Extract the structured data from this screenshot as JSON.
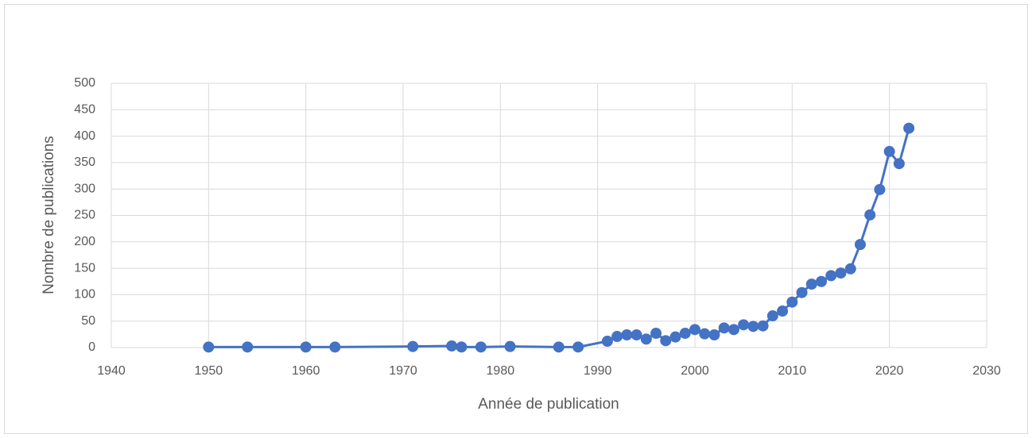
{
  "chart_data": {
    "type": "line",
    "x_label": "Année de publication",
    "y_label": "Nombre de publications",
    "x": [
      1950,
      1954,
      1960,
      1963,
      1971,
      1975,
      1976,
      1978,
      1981,
      1986,
      1988,
      1991,
      1992,
      1993,
      1994,
      1995,
      1996,
      1997,
      1998,
      1999,
      2000,
      2001,
      2002,
      2003,
      2004,
      2005,
      2006,
      2007,
      2008,
      2009,
      2010,
      2011,
      2012,
      2013,
      2014,
      2015,
      2016,
      2017,
      2018,
      2019,
      2020,
      2021,
      2022
    ],
    "series": [
      {
        "name": "Nombre de publications",
        "color": "#4472c4",
        "values": [
          1,
          1,
          1,
          1,
          2,
          3,
          1,
          1,
          2,
          1,
          1,
          12,
          21,
          24,
          24,
          16,
          27,
          13,
          20,
          27,
          34,
          26,
          24,
          37,
          34,
          43,
          40,
          41,
          60,
          69,
          86,
          104,
          120,
          125,
          136,
          141,
          149,
          195,
          251,
          299,
          371,
          348,
          415
        ]
      }
    ],
    "xlim": [
      1940,
      2030
    ],
    "xticks": [
      1940,
      1950,
      1960,
      1970,
      1980,
      1990,
      2000,
      2010,
      2020,
      2030
    ],
    "ylim": [
      0,
      500
    ],
    "yticks": [
      0,
      50,
      100,
      150,
      200,
      250,
      300,
      350,
      400,
      450,
      500
    ],
    "grid": true
  }
}
